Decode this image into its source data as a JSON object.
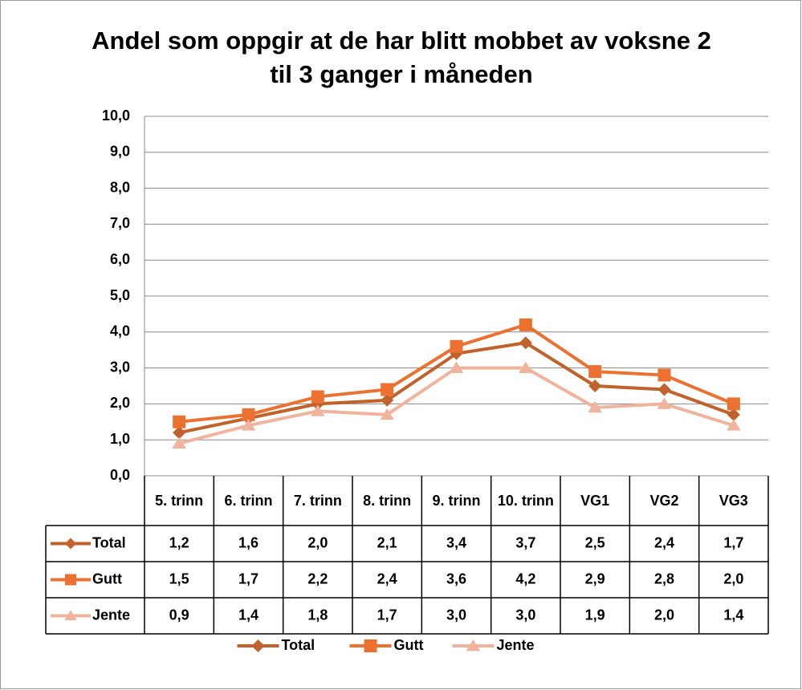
{
  "chart_data": {
    "type": "line",
    "title": "Andel som oppgir at de har blitt mobbet av voksne 2 til 3 ganger i måneden",
    "categories": [
      "5. trinn",
      "6. trinn",
      "7. trinn",
      "8. trinn",
      "9. trinn",
      "10. trinn",
      "VG1",
      "VG2",
      "VG3"
    ],
    "series": [
      {
        "name": "Total",
        "color": "#c0622a",
        "marker": "diamond",
        "values": [
          1.2,
          1.6,
          2.0,
          2.1,
          3.4,
          3.7,
          2.5,
          2.4,
          1.7
        ],
        "value_labels": [
          "1,2",
          "1,6",
          "2,0",
          "2,1",
          "3,4",
          "3,7",
          "2,5",
          "2,4",
          "1,7"
        ]
      },
      {
        "name": "Gutt",
        "color": "#ec7030",
        "marker": "square",
        "values": [
          1.5,
          1.7,
          2.2,
          2.4,
          3.6,
          4.2,
          2.9,
          2.8,
          2.0
        ],
        "value_labels": [
          "1,5",
          "1,7",
          "2,2",
          "2,4",
          "3,6",
          "4,2",
          "2,9",
          "2,8",
          "2,0"
        ]
      },
      {
        "name": "Jente",
        "color": "#f0b49c",
        "marker": "triangle",
        "values": [
          0.9,
          1.4,
          1.8,
          1.7,
          3.0,
          3.0,
          1.9,
          2.0,
          1.4
        ],
        "value_labels": [
          "0,9",
          "1,4",
          "1,8",
          "1,7",
          "3,0",
          "3,0",
          "1,9",
          "2,0",
          "1,4"
        ]
      }
    ],
    "ylim": [
      0,
      10
    ],
    "yticks": [
      {
        "value": 0,
        "label": "0,0"
      },
      {
        "value": 1,
        "label": "1,0"
      },
      {
        "value": 2,
        "label": "2,0"
      },
      {
        "value": 3,
        "label": "3,0"
      },
      {
        "value": 4,
        "label": "4,0"
      },
      {
        "value": 5,
        "label": "5,0"
      },
      {
        "value": 6,
        "label": "6,0"
      },
      {
        "value": 7,
        "label": "7,0"
      },
      {
        "value": 8,
        "label": "8,0"
      },
      {
        "value": 9,
        "label": "9,0"
      },
      {
        "value": 10,
        "label": "10,0"
      }
    ],
    "grid": true,
    "legend": "bottom",
    "data_table": true
  }
}
